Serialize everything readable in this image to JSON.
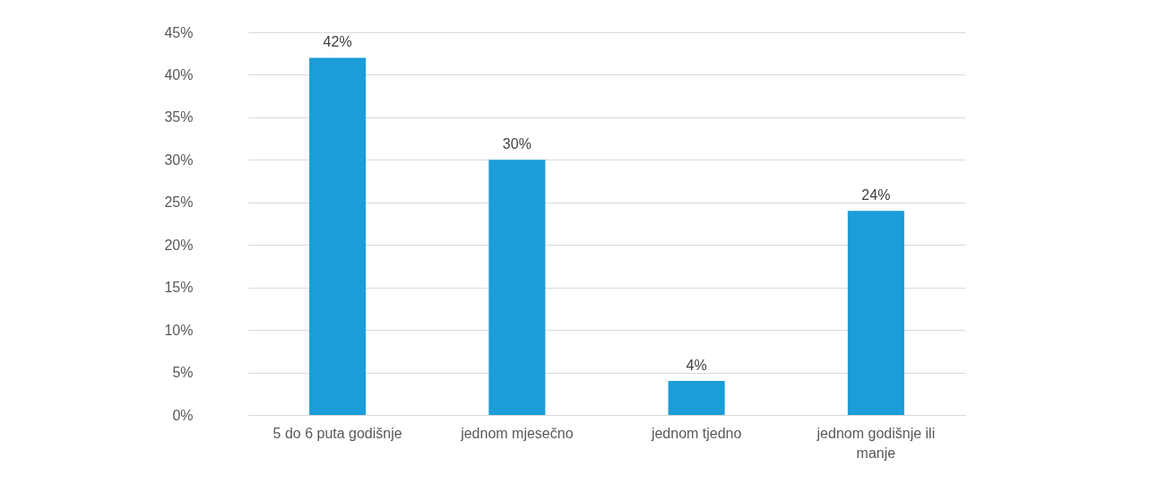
{
  "chart_data": {
    "type": "bar",
    "categories": [
      "5 do 6 puta godišnje",
      "jednom mjesečno",
      "jednom tjedno",
      "jednom godišnje ili manje"
    ],
    "values": [
      42,
      30,
      4,
      24
    ],
    "color": "#1b9dd9",
    "value_labels": [
      "42%",
      "30%",
      "4%",
      "24%"
    ],
    "ylim": [
      0,
      45
    ],
    "yticks": [
      {
        "value": 0,
        "label": "0%"
      },
      {
        "value": 5,
        "label": "5%"
      },
      {
        "value": 10,
        "label": "10%"
      },
      {
        "value": 15,
        "label": "15%"
      },
      {
        "value": 20,
        "label": "20%"
      },
      {
        "value": 25,
        "label": "25%"
      },
      {
        "value": 30,
        "label": "30%"
      },
      {
        "value": 35,
        "label": "35%"
      },
      {
        "value": 40,
        "label": "40%"
      },
      {
        "value": 45,
        "label": "45%"
      }
    ],
    "grid": "y"
  }
}
